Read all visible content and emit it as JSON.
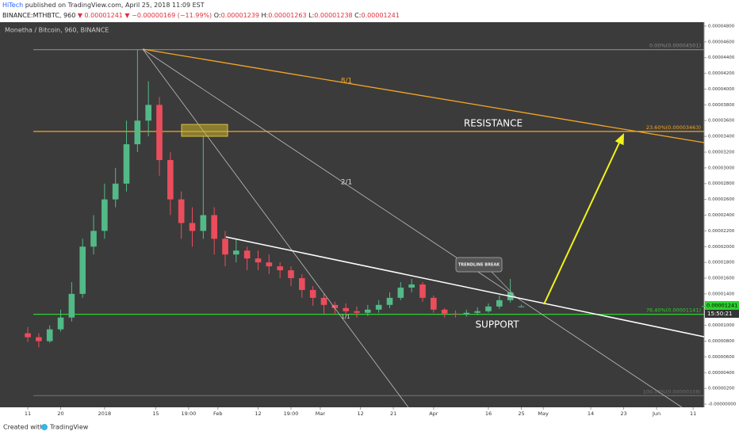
{
  "header": {
    "author": "HiTech",
    "published": "published on TradingView.com, April 25, 2018 11:09 EST",
    "symbol": "BINANCE:MTHBTC, 960",
    "last": "▼ 0.00001241",
    "change": "▼ −0.00000169 (−11.99%)",
    "ohlc": [
      {
        "label": "O:",
        "value": "0.00001239"
      },
      {
        "label": "H:",
        "value": "0.00001263"
      },
      {
        "label": "L:",
        "value": "0.00001238"
      },
      {
        "label": "C:",
        "value": "0.00001241"
      }
    ]
  },
  "footer": {
    "created": "Created with",
    "brand": "TradingView"
  },
  "chart_data": {
    "type": "candlestick",
    "title": "Monetha / Bitcoin, 960, BINANCE",
    "up_color": "#53b987",
    "down_color": "#eb4d5c",
    "grid": false,
    "x": [
      0,
      3,
      6,
      9,
      12,
      15,
      18,
      21,
      24,
      27,
      30,
      33,
      36,
      39,
      42,
      45,
      48,
      51,
      54,
      57,
      60,
      63,
      66,
      69,
      72,
      75,
      78,
      81,
      84,
      87,
      90,
      93,
      96,
      99,
      102,
      105,
      108,
      111,
      114,
      117,
      120,
      123,
      126,
      129,
      132,
      135
    ],
    "open": [
      9e-06,
      8.5e-06,
      8e-06,
      9.5e-06,
      1.1e-05,
      1.4e-05,
      2e-05,
      2.2e-05,
      2.6e-05,
      2.8e-05,
      3.3e-05,
      3.6e-05,
      3.8e-05,
      3.1e-05,
      2.6e-05,
      2.3e-05,
      2.2e-05,
      2.4e-05,
      2.1e-05,
      1.9e-05,
      1.95e-05,
      1.85e-05,
      1.8e-05,
      1.75e-05,
      1.7e-05,
      1.6e-05,
      1.45e-05,
      1.35e-05,
      1.26e-05,
      1.22e-05,
      1.18e-05,
      1.16e-05,
      1.2e-05,
      1.26e-05,
      1.35e-05,
      1.48e-05,
      1.52e-05,
      1.35e-05,
      1.2e-05,
      1.15e-05,
      1.14e-05,
      1.16e-05,
      1.18e-05,
      1.24e-05,
      1.32e-05,
      1.239e-05
    ],
    "high": [
      9.8e-06,
      9e-06,
      1e-05,
      1.2e-05,
      1.55e-05,
      2.1e-05,
      2.4e-05,
      2.8e-05,
      3e-05,
      3.6e-05,
      4.5e-05,
      4.1e-05,
      3.9e-05,
      3.2e-05,
      2.7e-05,
      2.5e-05,
      3.4e-05,
      2.5e-05,
      2.2e-05,
      2.1e-05,
      2e-05,
      1.95e-05,
      1.9e-05,
      1.8e-05,
      1.75e-05,
      1.65e-05,
      1.5e-05,
      1.4e-05,
      1.3e-05,
      1.28e-05,
      1.24e-05,
      1.26e-05,
      1.32e-05,
      1.42e-05,
      1.55e-05,
      1.59e-05,
      1.55e-05,
      1.38e-05,
      1.22e-05,
      1.19e-05,
      1.2e-05,
      1.23e-05,
      1.28e-05,
      1.38e-05,
      1.59e-05,
      1.263e-05
    ],
    "low": [
      7.9e-06,
      7.2e-06,
      7.8e-06,
      9.2e-06,
      1.05e-05,
      1.35e-05,
      1.9e-05,
      2.1e-05,
      2.5e-05,
      2.7e-05,
      3.2e-05,
      3.4e-05,
      2.9e-05,
      2.4e-05,
      2.1e-05,
      2e-05,
      2.1e-05,
      1.9e-05,
      1.75e-05,
      1.8e-05,
      1.7e-05,
      1.7e-05,
      1.65e-05,
      1.6e-05,
      1.5e-05,
      1.35e-05,
      1.25e-05,
      1.15e-05,
      1.14e-05,
      1.1e-05,
      1.1e-05,
      1.12e-05,
      1.16e-05,
      1.22e-05,
      1.32e-05,
      1.42e-05,
      1.3e-05,
      1.16e-05,
      1.1e-05,
      1.1e-05,
      1.11e-05,
      1.13e-05,
      1.16e-05,
      1.21e-05,
      1.29e-05,
      1.238e-05
    ],
    "close": [
      8.5e-06,
      8e-06,
      9.5e-06,
      1.1e-05,
      1.4e-05,
      2e-05,
      2.2e-05,
      2.6e-05,
      2.8e-05,
      3.3e-05,
      3.6e-05,
      3.8e-05,
      3.1e-05,
      2.6e-05,
      2.3e-05,
      2.2e-05,
      2.4e-05,
      2.1e-05,
      1.9e-05,
      1.95e-05,
      1.85e-05,
      1.8e-05,
      1.75e-05,
      1.7e-05,
      1.6e-05,
      1.45e-05,
      1.35e-05,
      1.26e-05,
      1.22e-05,
      1.18e-05,
      1.16e-05,
      1.2e-05,
      1.26e-05,
      1.35e-05,
      1.48e-05,
      1.52e-05,
      1.35e-05,
      1.2e-05,
      1.15e-05,
      1.14e-05,
      1.16e-05,
      1.18e-05,
      1.24e-05,
      1.32e-05,
      1.42e-05,
      1.241e-05
    ],
    "xlim": [
      -7.6,
      185
    ],
    "xticks": [
      {
        "value": 0,
        "label": "11"
      },
      {
        "value": 9,
        "label": "20"
      },
      {
        "value": 21,
        "label": "2018"
      },
      {
        "value": 35,
        "label": "15"
      },
      {
        "value": 44,
        "label": "19:00"
      },
      {
        "value": 52,
        "label": "Feb"
      },
      {
        "value": 63,
        "label": "12"
      },
      {
        "value": 72,
        "label": "19:00"
      },
      {
        "value": 80,
        "label": "Mar"
      },
      {
        "value": 91,
        "label": "12"
      },
      {
        "value": 100,
        "label": "21"
      },
      {
        "value": 111,
        "label": "Apr"
      },
      {
        "value": 126,
        "label": "16"
      },
      {
        "value": 135,
        "label": "25"
      },
      {
        "value": 141,
        "label": "May"
      },
      {
        "value": 154,
        "label": "14"
      },
      {
        "value": 163,
        "label": "23"
      },
      {
        "value": 172,
        "label": "Jun"
      },
      {
        "value": 182,
        "label": "11"
      }
    ],
    "ylim": [
      -4e-07,
      4.85e-05
    ],
    "yticks": [
      {
        "value": 0,
        "label": "-0.00000000"
      },
      {
        "value": 2e-06,
        "label": "0.00000200"
      },
      {
        "value": 4e-06,
        "label": "0.00000400"
      },
      {
        "value": 6e-06,
        "label": "0.00000600"
      },
      {
        "value": 8e-06,
        "label": "0.00000800"
      },
      {
        "value": 1e-05,
        "label": "0.00001000"
      },
      {
        "value": 1.2e-05,
        "label": "0.00001200"
      },
      {
        "value": 1.4e-05,
        "label": "0.00001400"
      },
      {
        "value": 1.6e-05,
        "label": "0.00001600"
      },
      {
        "value": 1.8e-05,
        "label": "0.00001800"
      },
      {
        "value": 2e-05,
        "label": "0.00002000"
      },
      {
        "value": 2.2e-05,
        "label": "0.00002200"
      },
      {
        "value": 2.4e-05,
        "label": "0.00002400"
      },
      {
        "value": 2.6e-05,
        "label": "0.00002600"
      },
      {
        "value": 2.8e-05,
        "label": "0.00002800"
      },
      {
        "value": 3e-05,
        "label": "0.00003000"
      },
      {
        "value": 3.2e-05,
        "label": "0.00003200"
      },
      {
        "value": 3.4e-05,
        "label": "0.00003400"
      },
      {
        "value": 3.6e-05,
        "label": "0.00003600"
      },
      {
        "value": 3.8e-05,
        "label": "0.00003800"
      },
      {
        "value": 4e-05,
        "label": "0.00004000"
      },
      {
        "value": 4.2e-05,
        "label": "0.00004200"
      },
      {
        "value": 4.4e-05,
        "label": "0.00004400"
      },
      {
        "value": 4.6e-05,
        "label": "0.00004600"
      },
      {
        "value": 4.8e-05,
        "label": "0.00004800"
      }
    ],
    "levels": [
      {
        "value": 4.501e-05,
        "label": "0.00%(0.00004501)",
        "color": "#8a8a8a"
      },
      {
        "value": 3.463e-05,
        "label": "23.60%(0.00003463)",
        "color": "#f5a623"
      },
      {
        "value": 1.141e-05,
        "label": "76.40%(0.00001141)",
        "color": "#2ed12e"
      },
      {
        "value": 1.08e-06,
        "label": "100.00%(0.00000108)",
        "color": "#6e6e6e"
      }
    ],
    "last_price": {
      "value": 1.241e-05,
      "label": "0.00001241"
    },
    "countdown": "15:50:21",
    "annotations": {
      "resistance": "RESISTANCE",
      "support": "SUPPORT",
      "trendline_break": "TRENDLINE BREAK",
      "fan_8_1": "8/1",
      "fan_2_1": "2/1",
      "fan_1_1": "1/1"
    }
  }
}
